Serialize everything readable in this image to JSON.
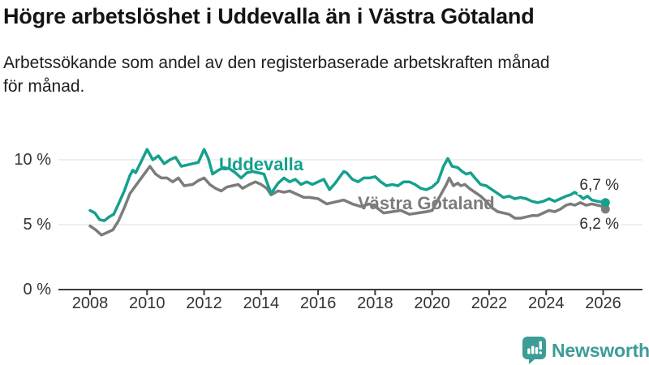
{
  "title": "Högre arbetslöshet i Uddevalla än i Västra Götaland",
  "subtitle": {
    "line1": "Arbetssökande som andel av den registerbaserade arbetskraften månad",
    "line2": "för månad."
  },
  "chart_data": {
    "type": "line",
    "title": "Högre arbetslöshet i Uddevalla än i Västra Götaland",
    "subtitle": "Arbetssökande som andel av den registerbaserade arbetskraften månad för månad.",
    "xlabel": "",
    "ylabel": "",
    "x_axis": {
      "ticks": [
        2008,
        2010,
        2012,
        2014,
        2016,
        2018,
        2020,
        2022,
        2024,
        2026
      ],
      "range": [
        2007.8,
        2027.3
      ]
    },
    "y_axis": {
      "ticks": [
        {
          "value": 10,
          "label": "10 %"
        },
        {
          "value": 5,
          "label": "5 %"
        },
        {
          "value": 0,
          "label": "0 %"
        }
      ],
      "range": [
        0,
        12
      ]
    },
    "grid": "horizontal",
    "legend_position": "inline-labels",
    "style": {
      "grid_color": "#dcdcdc",
      "axis_color": "#3c3c3c",
      "tick_text_color": "#333333"
    },
    "series": [
      {
        "name": "Uddevalla",
        "color": "#16a08e",
        "end_value": 6.7,
        "end_label": "6,7 %",
        "points": [
          [
            2008.0,
            6.1
          ],
          [
            2008.17,
            5.9
          ],
          [
            2008.33,
            5.4
          ],
          [
            2008.5,
            5.3
          ],
          [
            2008.67,
            5.6
          ],
          [
            2008.83,
            5.8
          ],
          [
            2009.0,
            6.6
          ],
          [
            2009.2,
            7.6
          ],
          [
            2009.4,
            8.8
          ],
          [
            2009.5,
            9.2
          ],
          [
            2009.6,
            9.0
          ],
          [
            2009.8,
            9.9
          ],
          [
            2010.0,
            10.8
          ],
          [
            2010.2,
            10.0
          ],
          [
            2010.4,
            10.3
          ],
          [
            2010.6,
            9.7
          ],
          [
            2010.8,
            10.0
          ],
          [
            2011.0,
            10.2
          ],
          [
            2011.2,
            9.5
          ],
          [
            2011.4,
            9.6
          ],
          [
            2011.6,
            9.7
          ],
          [
            2011.8,
            9.8
          ],
          [
            2012.0,
            10.8
          ],
          [
            2012.15,
            10.1
          ],
          [
            2012.3,
            8.9
          ],
          [
            2012.5,
            9.2
          ],
          [
            2012.7,
            9.4
          ],
          [
            2012.9,
            9.3
          ],
          [
            2013.1,
            9.0
          ],
          [
            2013.3,
            8.6
          ],
          [
            2013.5,
            9.0
          ],
          [
            2013.7,
            9.1
          ],
          [
            2013.9,
            9.0
          ],
          [
            2014.1,
            8.9
          ],
          [
            2014.35,
            7.4
          ],
          [
            2014.6,
            8.2
          ],
          [
            2014.8,
            8.6
          ],
          [
            2015.0,
            8.3
          ],
          [
            2015.2,
            8.5
          ],
          [
            2015.4,
            8.1
          ],
          [
            2015.6,
            8.3
          ],
          [
            2015.8,
            8.1
          ],
          [
            2016.0,
            8.3
          ],
          [
            2016.2,
            8.5
          ],
          [
            2016.4,
            7.7
          ],
          [
            2016.6,
            8.2
          ],
          [
            2016.9,
            9.1
          ],
          [
            2017.0,
            9.0
          ],
          [
            2017.2,
            8.5
          ],
          [
            2017.4,
            8.3
          ],
          [
            2017.6,
            8.6
          ],
          [
            2017.8,
            8.6
          ],
          [
            2018.0,
            8.7
          ],
          [
            2018.2,
            8.3
          ],
          [
            2018.4,
            8.0
          ],
          [
            2018.6,
            8.1
          ],
          [
            2018.8,
            8.0
          ],
          [
            2019.0,
            8.3
          ],
          [
            2019.2,
            8.3
          ],
          [
            2019.4,
            8.1
          ],
          [
            2019.6,
            7.8
          ],
          [
            2019.8,
            7.7
          ],
          [
            2020.0,
            7.9
          ],
          [
            2020.2,
            8.3
          ],
          [
            2020.4,
            9.5
          ],
          [
            2020.55,
            10.1
          ],
          [
            2020.7,
            9.5
          ],
          [
            2020.9,
            9.4
          ],
          [
            2021.05,
            9.1
          ],
          [
            2021.2,
            8.9
          ],
          [
            2021.35,
            9.0
          ],
          [
            2021.5,
            8.6
          ],
          [
            2021.7,
            8.1
          ],
          [
            2021.9,
            8.0
          ],
          [
            2022.1,
            7.7
          ],
          [
            2022.3,
            7.4
          ],
          [
            2022.5,
            7.1
          ],
          [
            2022.7,
            7.2
          ],
          [
            2022.9,
            7.0
          ],
          [
            2023.1,
            7.1
          ],
          [
            2023.3,
            7.0
          ],
          [
            2023.5,
            6.8
          ],
          [
            2023.7,
            6.7
          ],
          [
            2023.9,
            6.8
          ],
          [
            2024.1,
            7.0
          ],
          [
            2024.3,
            6.8
          ],
          [
            2024.5,
            7.0
          ],
          [
            2024.7,
            7.2
          ],
          [
            2024.85,
            7.3
          ],
          [
            2025.0,
            7.5
          ],
          [
            2025.15,
            7.3
          ],
          [
            2025.3,
            7.0
          ],
          [
            2025.45,
            7.2
          ],
          [
            2025.6,
            6.9
          ],
          [
            2025.8,
            6.8
          ],
          [
            2026.08,
            6.7
          ]
        ]
      },
      {
        "name": "Västra Götaland",
        "color": "#7c7c7c",
        "end_value": 6.2,
        "end_label": "6,2 %",
        "points": [
          [
            2008.0,
            4.9
          ],
          [
            2008.2,
            4.6
          ],
          [
            2008.4,
            4.2
          ],
          [
            2008.6,
            4.4
          ],
          [
            2008.8,
            4.6
          ],
          [
            2009.0,
            5.3
          ],
          [
            2009.2,
            6.3
          ],
          [
            2009.4,
            7.4
          ],
          [
            2009.7,
            8.3
          ],
          [
            2010.0,
            9.2
          ],
          [
            2010.1,
            9.5
          ],
          [
            2010.3,
            8.9
          ],
          [
            2010.5,
            8.6
          ],
          [
            2010.7,
            8.6
          ],
          [
            2010.9,
            8.3
          ],
          [
            2011.1,
            8.6
          ],
          [
            2011.3,
            8.0
          ],
          [
            2011.6,
            8.1
          ],
          [
            2011.8,
            8.4
          ],
          [
            2012.0,
            8.6
          ],
          [
            2012.2,
            8.1
          ],
          [
            2012.4,
            7.8
          ],
          [
            2012.6,
            7.6
          ],
          [
            2012.8,
            7.9
          ],
          [
            2013.0,
            8.0
          ],
          [
            2013.2,
            8.1
          ],
          [
            2013.35,
            7.8
          ],
          [
            2013.6,
            8.1
          ],
          [
            2013.8,
            8.3
          ],
          [
            2014.0,
            8.1
          ],
          [
            2014.2,
            7.8
          ],
          [
            2014.35,
            7.3
          ],
          [
            2014.6,
            7.6
          ],
          [
            2014.8,
            7.5
          ],
          [
            2015.0,
            7.6
          ],
          [
            2015.2,
            7.4
          ],
          [
            2015.5,
            7.1
          ],
          [
            2015.7,
            7.1
          ],
          [
            2016.0,
            7.0
          ],
          [
            2016.3,
            6.6
          ],
          [
            2016.7,
            6.8
          ],
          [
            2016.9,
            6.9
          ],
          [
            2017.2,
            6.6
          ],
          [
            2017.5,
            6.4
          ],
          [
            2017.8,
            6.6
          ],
          [
            2018.0,
            6.4
          ],
          [
            2018.3,
            5.9
          ],
          [
            2018.6,
            6.0
          ],
          [
            2018.9,
            6.1
          ],
          [
            2019.2,
            5.8
          ],
          [
            2019.5,
            5.9
          ],
          [
            2019.8,
            6.0
          ],
          [
            2020.0,
            6.1
          ],
          [
            2020.3,
            7.3
          ],
          [
            2020.5,
            8.1
          ],
          [
            2020.6,
            8.6
          ],
          [
            2020.75,
            8.0
          ],
          [
            2020.9,
            8.2
          ],
          [
            2021.0,
            8.0
          ],
          [
            2021.15,
            8.1
          ],
          [
            2021.3,
            7.8
          ],
          [
            2021.5,
            7.5
          ],
          [
            2021.7,
            7.2
          ],
          [
            2021.9,
            6.8
          ],
          [
            2022.1,
            6.3
          ],
          [
            2022.3,
            6.0
          ],
          [
            2022.5,
            5.9
          ],
          [
            2022.7,
            5.8
          ],
          [
            2022.9,
            5.5
          ],
          [
            2023.1,
            5.5
          ],
          [
            2023.3,
            5.6
          ],
          [
            2023.5,
            5.7
          ],
          [
            2023.7,
            5.7
          ],
          [
            2023.9,
            5.9
          ],
          [
            2024.1,
            6.1
          ],
          [
            2024.3,
            6.0
          ],
          [
            2024.5,
            6.2
          ],
          [
            2024.7,
            6.5
          ],
          [
            2024.85,
            6.6
          ],
          [
            2025.0,
            6.5
          ],
          [
            2025.2,
            6.7
          ],
          [
            2025.4,
            6.5
          ],
          [
            2025.6,
            6.6
          ],
          [
            2025.8,
            6.5
          ],
          [
            2026.0,
            6.4
          ],
          [
            2026.08,
            6.2
          ]
        ]
      }
    ]
  },
  "branding": {
    "logo_text": "Newsworthy",
    "logo_icon": "bar-chart-speech-bubble-icon",
    "logo_color": "#3d9c96"
  }
}
